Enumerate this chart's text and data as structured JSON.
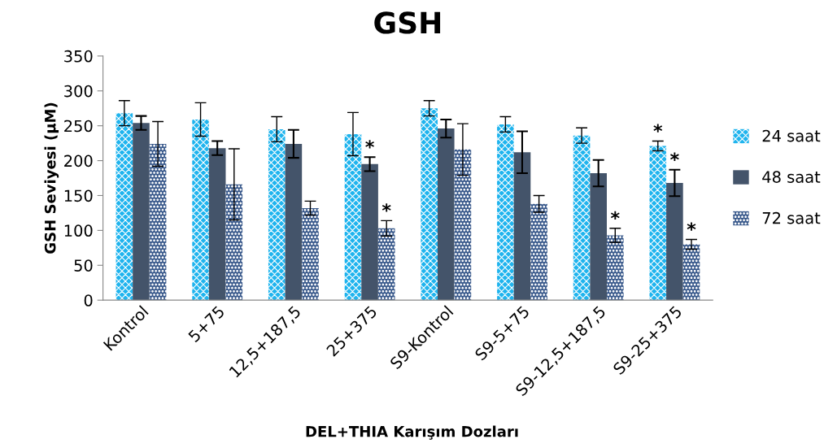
{
  "chart_data": {
    "type": "bar",
    "title": "GSH",
    "xlabel": "DEL+THIA Karışım Dozları",
    "ylabel": "GSH Seviyesi (µM)",
    "categories": [
      "Kontrol",
      "5+75",
      "12,5+187,5",
      "25+375",
      "S9-Kontrol",
      "S9-5+75",
      "S9-12,5+187,5",
      "S9-25+375"
    ],
    "series": [
      {
        "name": "24 saat",
        "color": "#1fb4ee",
        "values": [
          268,
          259,
          245,
          238,
          275,
          252,
          236,
          221
        ],
        "errors": [
          18,
          24,
          18,
          31,
          11,
          11,
          11,
          7
        ],
        "value_labels": [
          null,
          null,
          null,
          null,
          null,
          null,
          null,
          "*"
        ]
      },
      {
        "name": "48 saat",
        "color": "#44546a",
        "values": [
          254,
          218,
          224,
          195,
          246,
          212,
          182,
          168
        ],
        "errors": [
          10,
          10,
          20,
          10,
          13,
          30,
          19,
          19
        ],
        "value_labels": [
          null,
          null,
          null,
          "*",
          null,
          null,
          null,
          "*"
        ]
      },
      {
        "name": "72 saat",
        "color": "#3a5a8c",
        "values": [
          224,
          166,
          132,
          103,
          216,
          138,
          93,
          80
        ],
        "errors": [
          32,
          51,
          10,
          11,
          37,
          12,
          10,
          7
        ],
        "value_labels": [
          null,
          null,
          null,
          "*",
          null,
          null,
          "*",
          "*"
        ]
      }
    ],
    "ylim": [
      0,
      350
    ],
    "yticks": [
      0,
      50,
      100,
      150,
      200,
      250,
      300,
      350
    ],
    "grid": false,
    "legend": "right"
  }
}
